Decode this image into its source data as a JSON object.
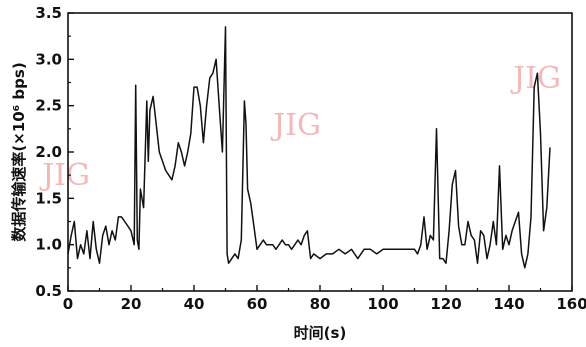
{
  "chart_data": {
    "type": "line",
    "title": "",
    "xlabel": "时间(s)",
    "ylabel": "数据传输速率(×10⁶ bps)",
    "xlim": [
      0,
      160
    ],
    "ylim": [
      0.5,
      3.5
    ],
    "xticks": [
      0,
      20,
      40,
      60,
      80,
      100,
      120,
      140,
      160
    ],
    "yticks": [
      0.5,
      1.0,
      1.5,
      2.0,
      2.5,
      3.0,
      3.5
    ],
    "xtick_labels": [
      "0",
      "20",
      "40",
      "60",
      "80",
      "100",
      "120",
      "140",
      "160"
    ],
    "ytick_labels": [
      "0.5",
      "1.0",
      "1.5",
      "2.0",
      "2.5",
      "3.0",
      "3.5"
    ],
    "grid": false,
    "watermark": [
      "JIG",
      "JIG",
      "JIG"
    ],
    "series": [
      {
        "color": "#111111",
        "x": [
          0,
          1,
          2,
          3,
          4,
          5,
          6,
          7,
          8,
          9,
          10,
          11,
          12,
          13,
          14,
          15,
          16,
          17,
          18,
          19,
          20,
          21,
          21.5,
          22,
          22.5,
          23,
          24,
          25,
          25.5,
          26,
          27,
          28,
          29,
          30,
          31,
          32,
          33,
          34,
          35,
          36,
          37,
          38,
          39,
          40,
          41,
          42,
          43,
          44,
          45,
          46,
          47,
          48,
          49,
          50,
          50.5,
          51,
          52,
          53,
          54,
          55,
          56,
          56.5,
          57,
          58,
          59,
          60,
          61,
          62,
          63,
          64,
          65,
          66,
          67,
          68,
          69,
          70,
          71,
          72,
          73,
          74,
          75,
          76,
          77,
          78,
          80,
          82,
          84,
          86,
          88,
          90,
          92,
          94,
          96,
          98,
          100,
          102,
          104,
          106,
          108,
          110,
          111,
          112,
          113,
          114,
          115,
          116,
          117,
          118,
          119,
          120,
          121,
          122,
          123,
          124,
          125,
          126,
          127,
          128,
          129,
          130,
          131,
          132,
          133,
          134,
          135,
          136,
          137,
          138,
          139,
          140,
          141,
          142,
          143,
          144,
          145,
          146,
          147,
          148,
          149,
          150,
          151,
          152,
          153
        ],
        "y": [
          0.9,
          1.1,
          1.25,
          0.85,
          1.0,
          0.9,
          1.15,
          0.85,
          1.25,
          0.95,
          0.8,
          1.1,
          1.2,
          1.0,
          1.15,
          1.05,
          1.3,
          1.3,
          1.25,
          1.2,
          1.15,
          1.0,
          2.72,
          1.05,
          0.95,
          1.6,
          1.4,
          2.55,
          1.9,
          2.45,
          2.6,
          2.3,
          2.0,
          1.9,
          1.8,
          1.75,
          1.7,
          1.85,
          2.1,
          2.0,
          1.85,
          2.0,
          2.2,
          2.7,
          2.7,
          2.5,
          2.1,
          2.5,
          2.8,
          2.85,
          3.0,
          2.5,
          2.0,
          3.35,
          0.9,
          0.8,
          0.85,
          0.9,
          0.85,
          1.05,
          2.55,
          2.3,
          1.6,
          1.45,
          1.2,
          0.95,
          1.0,
          1.05,
          1.0,
          1.0,
          1.0,
          0.95,
          1.0,
          1.05,
          1.0,
          1.0,
          0.95,
          1.0,
          1.05,
          1.0,
          1.1,
          1.15,
          0.85,
          0.9,
          0.85,
          0.9,
          0.9,
          0.95,
          0.9,
          0.95,
          0.85,
          0.95,
          0.95,
          0.9,
          0.95,
          0.95,
          0.95,
          0.95,
          0.95,
          0.95,
          0.9,
          1.0,
          1.3,
          0.95,
          1.1,
          1.05,
          2.25,
          0.85,
          0.85,
          0.8,
          1.15,
          1.65,
          1.8,
          1.2,
          1.0,
          1.0,
          1.25,
          1.1,
          1.05,
          0.8,
          1.15,
          1.1,
          0.85,
          1.0,
          1.25,
          1.0,
          1.85,
          0.95,
          1.1,
          1.0,
          1.15,
          1.25,
          1.35,
          0.9,
          0.75,
          0.9,
          1.3,
          2.7,
          2.85,
          2.2,
          1.15,
          1.4,
          2.05
        ]
      }
    ]
  }
}
